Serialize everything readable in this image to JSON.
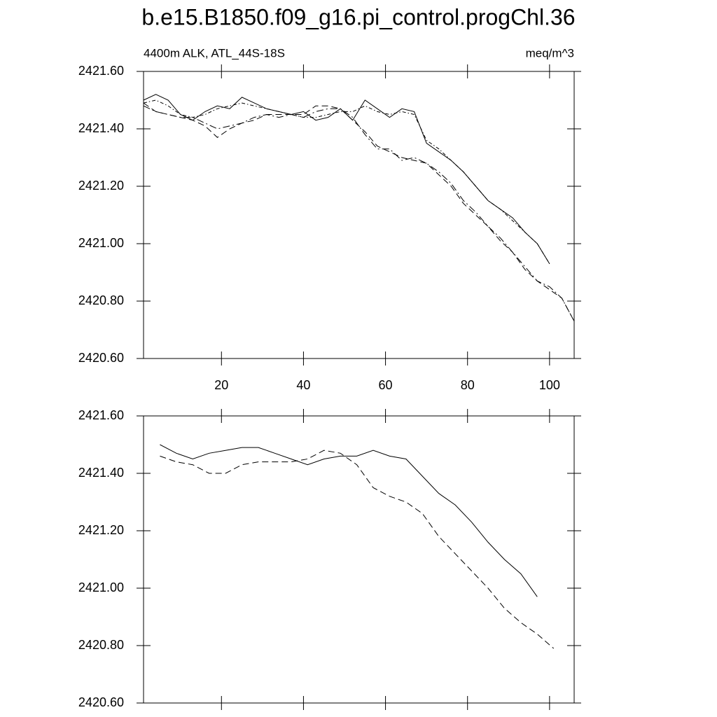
{
  "chart_data": [
    {
      "type": "line",
      "title": "b.e15.B1850.f09_g16.pi_control.progChl.36",
      "left_subtitle": "4400m ALK, ATL_44S-18S",
      "right_subtitle": "meq/m^3",
      "xlim": [
        1,
        106
      ],
      "xticks": [
        20,
        40,
        60,
        80,
        100
      ],
      "ylim": [
        2420.6,
        2421.6
      ],
      "yticks": [
        {
          "value": 2420.6,
          "label": "2420.60"
        },
        {
          "value": 2420.8,
          "label": "2420.80"
        },
        {
          "value": 2421.0,
          "label": "2421.00"
        },
        {
          "value": 2421.2,
          "label": "2421.20"
        },
        {
          "value": 2421.4,
          "label": "2421.40"
        },
        {
          "value": 2421.6,
          "label": "2421.60"
        }
      ],
      "series": [
        {
          "color": "#000000",
          "style": "solid",
          "x": [
            1,
            4,
            7,
            10,
            13,
            16,
            19,
            22,
            25,
            28,
            31,
            34,
            37,
            40,
            43,
            46,
            49,
            52,
            55,
            58,
            61,
            64,
            67,
            70,
            73,
            76,
            79,
            82,
            85,
            88,
            91,
            94,
            97,
            100
          ],
          "values": [
            2421.5,
            2421.52,
            2421.5,
            2421.45,
            2421.43,
            2421.46,
            2421.48,
            2421.47,
            2421.51,
            2421.49,
            2421.47,
            2421.46,
            2421.45,
            2421.46,
            2421.43,
            2421.44,
            2421.47,
            2421.43,
            2421.5,
            2421.47,
            2421.44,
            2421.47,
            2421.46,
            2421.35,
            2421.32,
            2421.29,
            2421.25,
            2421.2,
            2421.15,
            2421.12,
            2421.09,
            2421.04,
            2421.0,
            2420.93
          ]
        },
        {
          "color": "#000000",
          "style": "dotdash",
          "x": [
            1,
            4,
            7,
            10,
            13,
            16,
            19,
            22,
            25,
            28,
            31,
            34,
            37,
            40,
            43,
            46,
            49,
            52,
            55,
            58,
            61,
            64,
            67,
            70,
            73,
            76,
            79,
            82,
            85,
            88,
            91,
            94,
            97,
            100
          ],
          "values": [
            2421.49,
            2421.5,
            2421.48,
            2421.45,
            2421.44,
            2421.45,
            2421.47,
            2421.48,
            2421.49,
            2421.48,
            2421.47,
            2421.46,
            2421.45,
            2421.44,
            2421.44,
            2421.45,
            2421.46,
            2421.46,
            2421.48,
            2421.46,
            2421.45,
            2421.46,
            2421.45,
            2421.36,
            2421.33,
            2421.29,
            2421.25,
            2421.2,
            2421.15,
            2421.12,
            2421.08,
            2421.04,
            2421.0,
            2420.93
          ]
        },
        {
          "color": "#000000",
          "style": "dashed",
          "x": [
            1,
            4,
            7,
            10,
            13,
            16,
            19,
            22,
            25,
            28,
            31,
            34,
            37,
            40,
            43,
            46,
            49,
            52,
            55,
            58,
            61,
            64,
            67,
            70,
            73,
            76,
            79,
            82,
            85,
            88,
            91,
            94,
            97,
            100,
            103,
            106
          ],
          "values": [
            2421.49,
            2421.46,
            2421.45,
            2421.44,
            2421.43,
            2421.41,
            2421.37,
            2421.4,
            2421.42,
            2421.43,
            2421.45,
            2421.45,
            2421.45,
            2421.45,
            2421.48,
            2421.48,
            2421.47,
            2421.43,
            2421.39,
            2421.34,
            2421.32,
            2421.3,
            2421.29,
            2421.28,
            2421.24,
            2421.2,
            2421.14,
            2421.1,
            2421.06,
            2421.01,
            2420.97,
            2420.91,
            2420.87,
            2420.84,
            2420.81,
            2420.73
          ]
        },
        {
          "color": "#000000",
          "style": "dashdot",
          "x": [
            1,
            4,
            7,
            10,
            13,
            16,
            19,
            22,
            25,
            28,
            31,
            34,
            37,
            40,
            43,
            46,
            49,
            52,
            55,
            58,
            61,
            64,
            67,
            70,
            73,
            76,
            79,
            82,
            85,
            88,
            91,
            94,
            97,
            100,
            103,
            106
          ],
          "values": [
            2421.48,
            2421.46,
            2421.45,
            2421.44,
            2421.44,
            2421.42,
            2421.4,
            2421.41,
            2421.42,
            2421.44,
            2421.45,
            2421.44,
            2421.45,
            2421.44,
            2421.46,
            2421.47,
            2421.47,
            2421.44,
            2421.38,
            2421.33,
            2421.33,
            2421.29,
            2421.3,
            2421.28,
            2421.25,
            2421.21,
            2421.15,
            2421.11,
            2421.06,
            2421.02,
            2420.97,
            2420.92,
            2420.87,
            2420.85,
            2420.81,
            2420.73
          ]
        }
      ]
    },
    {
      "type": "line",
      "xlim": [
        1,
        106
      ],
      "ylim": [
        2420.6,
        2421.6
      ],
      "yticks": [
        {
          "value": 2420.6,
          "label": "2420.60"
        },
        {
          "value": 2420.8,
          "label": "2420.80"
        },
        {
          "value": 2421.0,
          "label": "2421.00"
        },
        {
          "value": 2421.2,
          "label": "2421.20"
        },
        {
          "value": 2421.4,
          "label": "2421.40"
        },
        {
          "value": 2421.6,
          "label": "2421.60"
        }
      ],
      "series": [
        {
          "color": "#000000",
          "style": "solid",
          "x": [
            5,
            9,
            13,
            17,
            21,
            25,
            29,
            33,
            37,
            41,
            45,
            49,
            53,
            57,
            61,
            65,
            69,
            73,
            77,
            81,
            85,
            89,
            93,
            97
          ],
          "values": [
            2421.5,
            2421.47,
            2421.45,
            2421.47,
            2421.48,
            2421.49,
            2421.49,
            2421.47,
            2421.45,
            2421.43,
            2421.45,
            2421.46,
            2421.46,
            2421.48,
            2421.46,
            2421.45,
            2421.39,
            2421.33,
            2421.29,
            2421.23,
            2421.16,
            2421.1,
            2421.05,
            2420.97
          ]
        },
        {
          "color": "#000000",
          "style": "dashed",
          "x": [
            5,
            9,
            13,
            17,
            21,
            25,
            29,
            33,
            37,
            41,
            45,
            49,
            53,
            57,
            61,
            65,
            69,
            73,
            77,
            81,
            85,
            89,
            93,
            97,
            101
          ],
          "values": [
            2421.46,
            2421.44,
            2421.43,
            2421.4,
            2421.4,
            2421.43,
            2421.44,
            2421.44,
            2421.44,
            2421.45,
            2421.48,
            2421.47,
            2421.43,
            2421.35,
            2421.32,
            2421.3,
            2421.26,
            2421.18,
            2421.12,
            2421.06,
            2421.0,
            2420.93,
            2420.88,
            2420.84,
            2420.79
          ]
        }
      ]
    }
  ]
}
